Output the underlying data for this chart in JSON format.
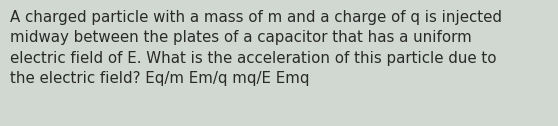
{
  "text": "A charged particle with a mass of m and a charge of q is injected\nmidway between the plates of a capacitor that has a uniform\nelectric field of E. What is the acceleration of this particle due to\nthe electric field? Eq/m Em/q mq/E Emq",
  "background_color": "#d1d8d1",
  "text_color": "#2a2a2a",
  "font_size": 10.8,
  "fig_width": 5.58,
  "fig_height": 1.26,
  "dpi": 100
}
